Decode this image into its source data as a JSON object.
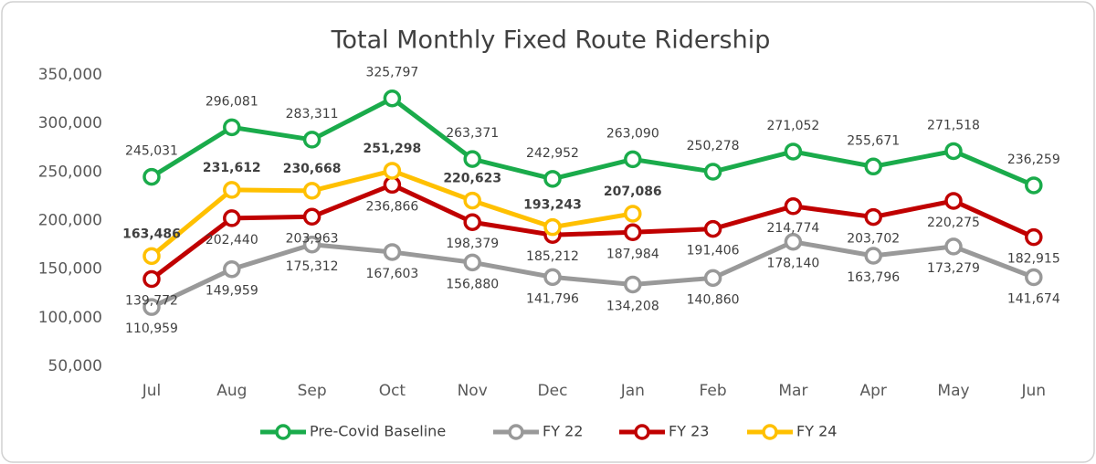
{
  "chart_data": {
    "type": "line",
    "title": "Total Monthly Fixed Route Ridership",
    "categories": [
      "Jul",
      "Aug",
      "Sep",
      "Oct",
      "Nov",
      "Dec",
      "Jan",
      "Feb",
      "Mar",
      "Apr",
      "May",
      "Jun"
    ],
    "ylim": [
      50000,
      350000
    ],
    "yticks": [
      {
        "value": 50000,
        "label": "50,000"
      },
      {
        "value": 100000,
        "label": "100,000"
      },
      {
        "value": 150000,
        "label": "150,000"
      },
      {
        "value": 200000,
        "label": "200,000"
      },
      {
        "value": 250000,
        "label": "250,000"
      },
      {
        "value": 300000,
        "label": "300,000"
      },
      {
        "value": 350000,
        "label": "350,000"
      }
    ],
    "grid": false,
    "legend": "bottom",
    "series": [
      {
        "name": "Pre-Covid Baseline",
        "color": "#1aab4b",
        "values": [
          245031,
          296081,
          283311,
          325797,
          263371,
          242952,
          263090,
          250278,
          271052,
          255671,
          271518,
          236259
        ],
        "value_labels": [
          "245,031",
          "296,081",
          "283,311",
          "325,797",
          "263,371",
          "242,952",
          "263,090",
          "250,278",
          "271,052",
          "255,671",
          "271,518",
          "236,259"
        ]
      },
      {
        "name": "FY 22",
        "color": "#999999",
        "values": [
          110959,
          149959,
          175312,
          167603,
          156880,
          141796,
          134208,
          140860,
          178140,
          163796,
          173279,
          141674
        ],
        "value_labels": [
          "110,959",
          "149,959",
          "175,312",
          "167,603",
          "156,880",
          "141,796",
          "134,208",
          "140,860",
          "178,140",
          "163,796",
          "173,279",
          "141,674"
        ]
      },
      {
        "name": "FY 23",
        "color": "#c00000",
        "values": [
          139772,
          202440,
          203963,
          236866,
          198379,
          185212,
          187984,
          191406,
          214774,
          203702,
          220275,
          182915
        ],
        "value_labels": [
          "139,772",
          "202,440",
          "203,963",
          "236,866",
          "198,379",
          "185,212",
          "187,984",
          "191,406",
          "214,774",
          "203,702",
          "220,275",
          "182,915"
        ]
      },
      {
        "name": "FY 24",
        "color": "#ffc000",
        "values": [
          163486,
          231612,
          230668,
          251298,
          220623,
          193243,
          207086,
          null,
          null,
          null,
          null,
          null
        ],
        "value_labels": [
          "163,486",
          "231,612",
          "230,668",
          "251,298",
          "220,623",
          "193,243",
          "207,086",
          null,
          null,
          null,
          null,
          null
        ]
      }
    ]
  }
}
